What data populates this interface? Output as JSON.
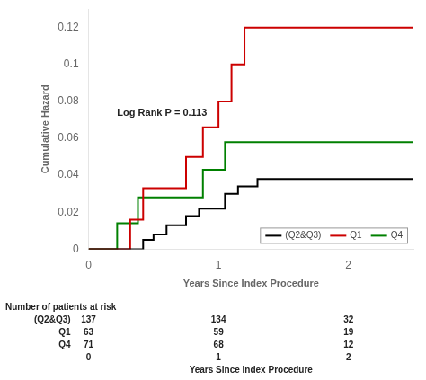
{
  "chart_data": {
    "type": "line",
    "x_label": "Years Since Index Procedure",
    "y_label": "Cumulative Hazard",
    "xlim": [
      0,
      2.5
    ],
    "ylim": [
      0,
      0.13
    ],
    "xticks": [
      0,
      1,
      2
    ],
    "yticks": [
      0,
      0.02,
      0.04,
      0.06,
      0.08,
      0.1,
      0.12
    ],
    "grid": false,
    "legend": "lower right",
    "line_style": "steps",
    "annotations": [
      {
        "text": "Log Rank P = 0.113",
        "x": 0.22,
        "y": 0.072
      }
    ],
    "series": [
      {
        "name": "(Q2&Q3)",
        "color": "#000000",
        "x": [
          0,
          0.35,
          0.42,
          0.5,
          0.6,
          0.75,
          0.85,
          1.05,
          1.15,
          1.3,
          2.5
        ],
        "values": [
          0,
          0,
          0.005,
          0.008,
          0.013,
          0.018,
          0.022,
          0.03,
          0.034,
          0.038,
          0.038
        ]
      },
      {
        "name": "Q1",
        "color": "#cc0000",
        "x": [
          0,
          0.18,
          0.32,
          0.42,
          0.75,
          0.88,
          1.0,
          1.1,
          1.2,
          2.5
        ],
        "values": [
          0,
          0,
          0.016,
          0.033,
          0.05,
          0.066,
          0.08,
          0.1,
          0.12,
          0.12
        ]
      },
      {
        "name": "Q4",
        "color": "#008000",
        "x": [
          0,
          0.08,
          0.22,
          0.38,
          0.88,
          1.05,
          2.5
        ],
        "values": [
          0,
          0,
          0.014,
          0.028,
          0.043,
          0.058,
          0.06
        ]
      }
    ],
    "risk_table": {
      "title": "Number of patients at risk",
      "rows": [
        {
          "name": "(Q2&Q3)",
          "values": [
            137,
            134,
            32
          ]
        },
        {
          "name": "Q1",
          "values": [
            63,
            59,
            19
          ]
        },
        {
          "name": "Q4",
          "values": [
            71,
            68,
            12
          ]
        }
      ],
      "time_label": "Years Since Index Procedure",
      "times": [
        0,
        1,
        2
      ]
    }
  }
}
